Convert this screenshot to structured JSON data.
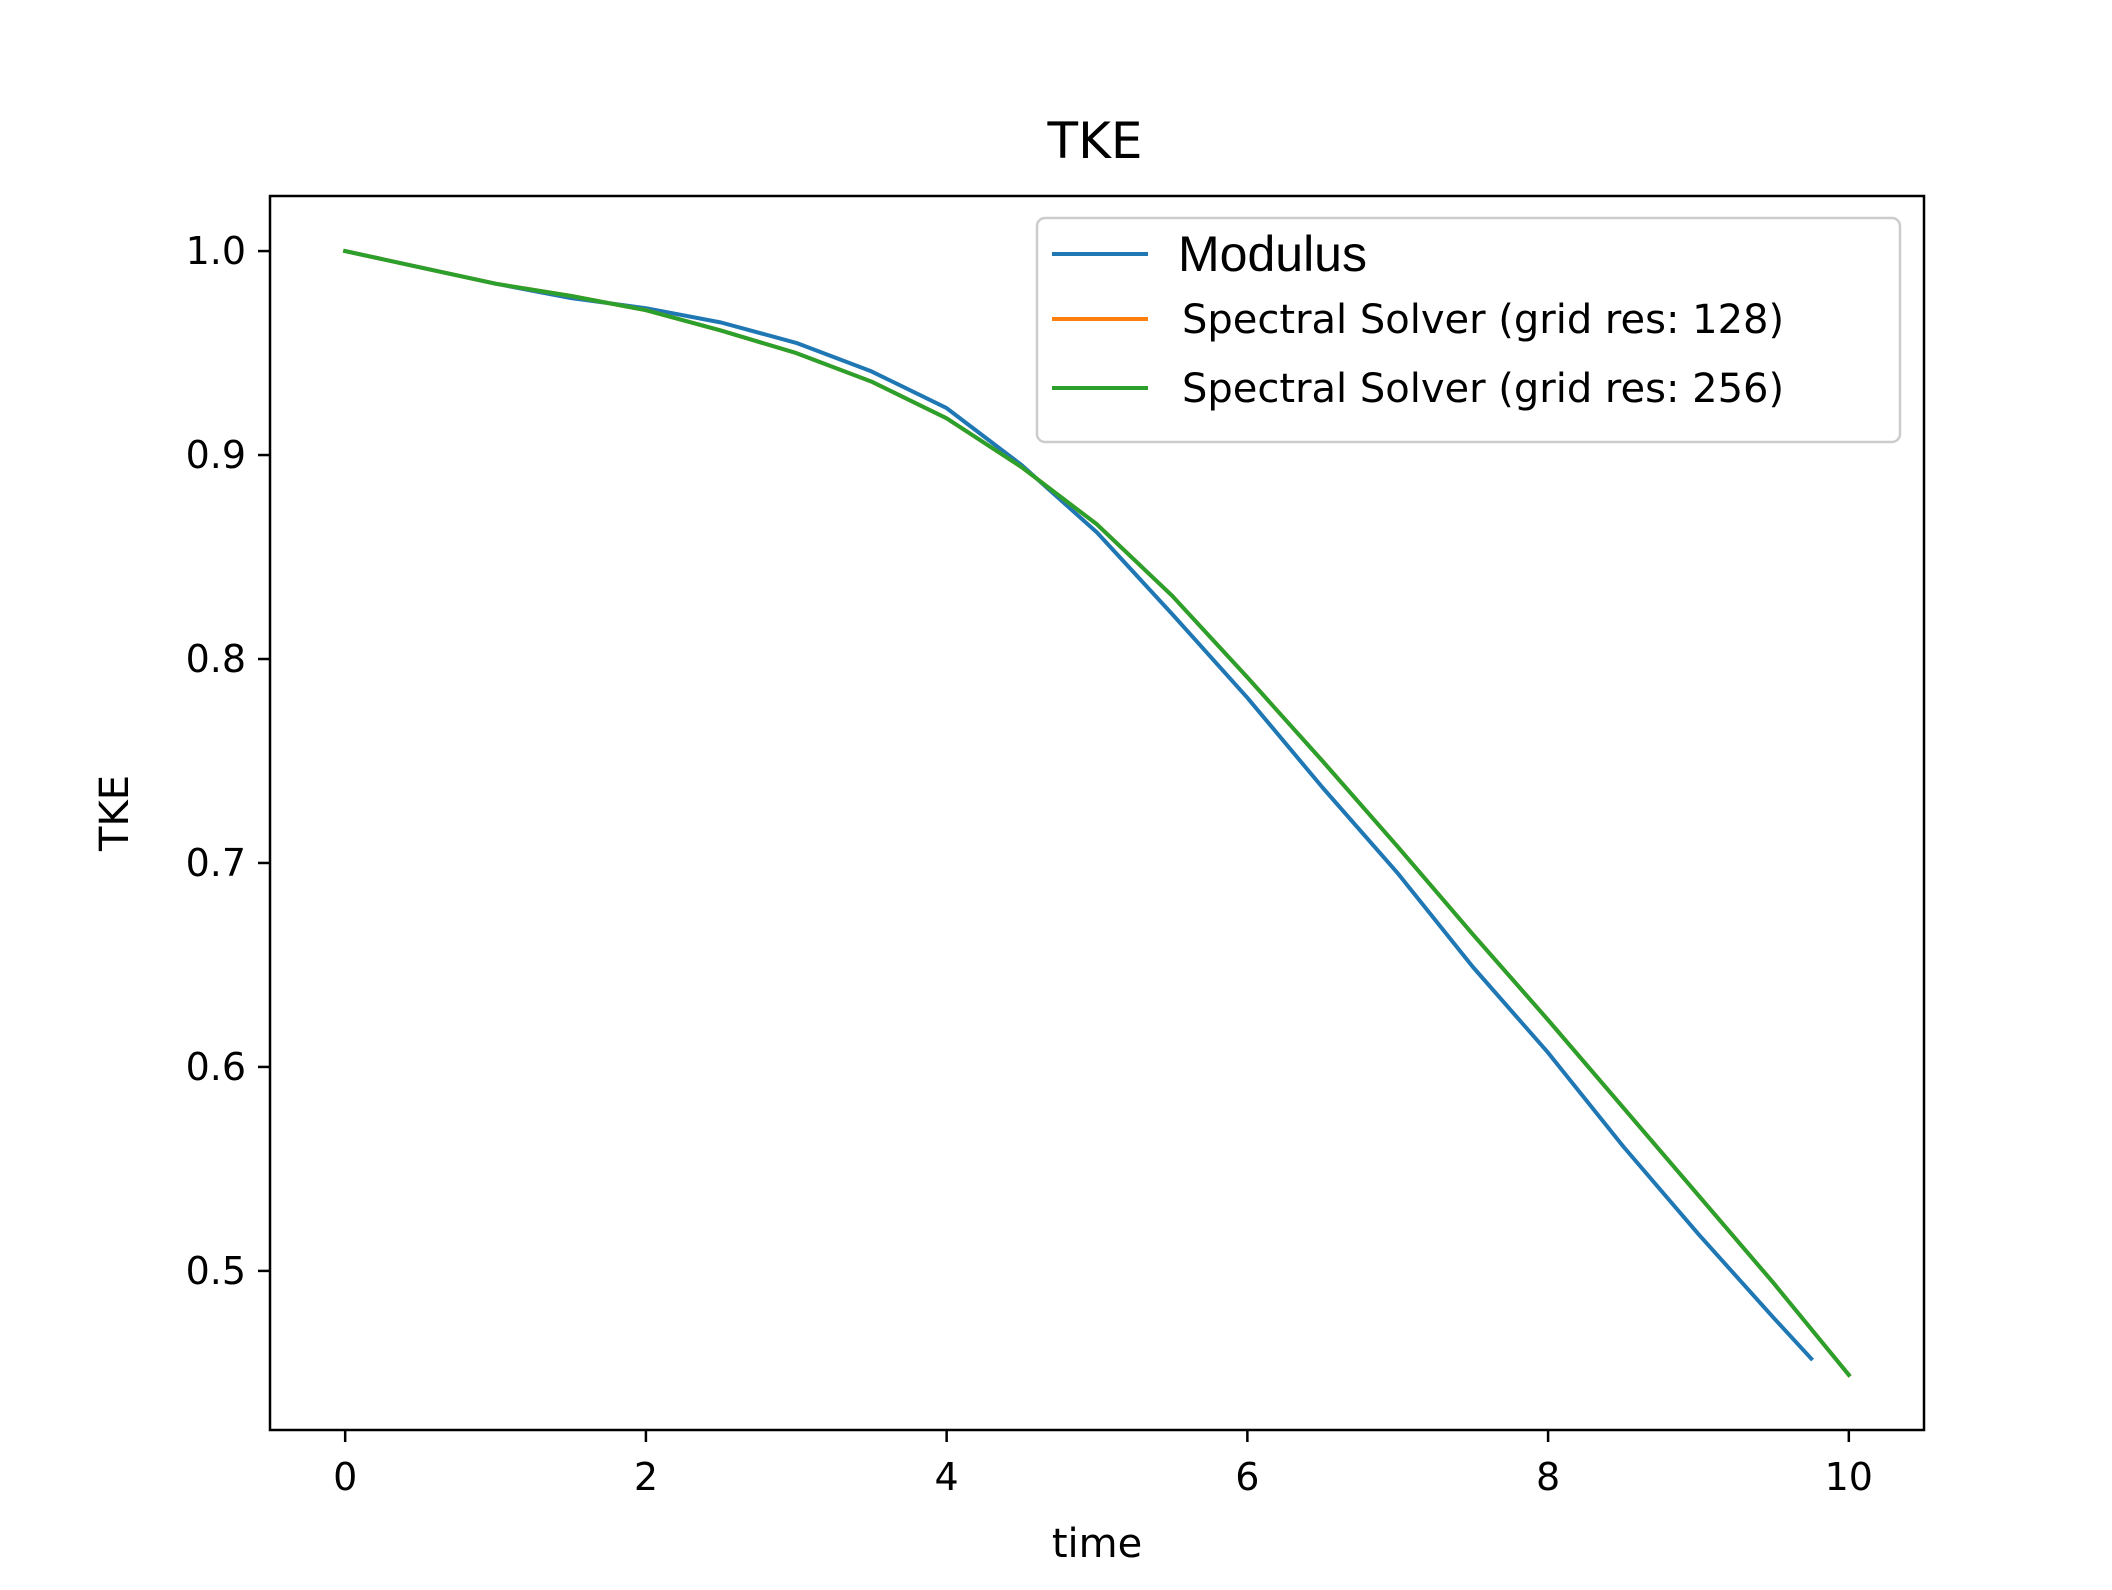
{
  "chart_data": {
    "type": "line",
    "title": "TKE",
    "xlabel": "time",
    "ylabel": "TKE",
    "xlim": [
      -0.5,
      10.5
    ],
    "ylim": [
      0.422,
      1.027
    ],
    "xticks": [
      0,
      2,
      4,
      6,
      8,
      10
    ],
    "xtick_labels": [
      "0",
      "2",
      "4",
      "6",
      "8",
      "10"
    ],
    "yticks": [
      0.5,
      0.6,
      0.7,
      0.8,
      0.9,
      1.0
    ],
    "ytick_labels": [
      "0.5",
      "0.6",
      "0.7",
      "0.8",
      "0.9",
      "1.0"
    ],
    "grid": false,
    "legend_position": "top-right",
    "series": [
      {
        "name": "Modulus",
        "color": "#1f77b4",
        "x": [
          0,
          0.5,
          1,
          1.5,
          2,
          2.5,
          3,
          3.5,
          4,
          4.5,
          5,
          5.5,
          6,
          6.5,
          7,
          7.5,
          8,
          8.5,
          9,
          9.5,
          9.75
        ],
        "y": [
          1.0,
          0.992,
          0.984,
          0.977,
          0.972,
          0.965,
          0.955,
          0.941,
          0.923,
          0.895,
          0.862,
          0.822,
          0.781,
          0.737,
          0.695,
          0.649,
          0.607,
          0.561,
          0.518,
          0.477,
          0.457
        ]
      },
      {
        "name": "Spectral Solver (grid res: 128)",
        "color": "#ff7f0e",
        "x": [
          0,
          0.5,
          1,
          1.5,
          2,
          2.5,
          3,
          3.5,
          4,
          4.5,
          5,
          5.5,
          6,
          6.5,
          7,
          7.5,
          8,
          8.5,
          9,
          9.5,
          10
        ],
        "y": [
          1.0,
          0.992,
          0.984,
          0.978,
          0.971,
          0.961,
          0.95,
          0.936,
          0.918,
          0.894,
          0.866,
          0.831,
          0.791,
          0.75,
          0.708,
          0.665,
          0.623,
          0.58,
          0.537,
          0.494,
          0.449
        ]
      },
      {
        "name": "Spectral Solver (grid res: 256)",
        "color": "#2ca02c",
        "x": [
          0,
          0.5,
          1,
          1.5,
          2,
          2.5,
          3,
          3.5,
          4,
          4.5,
          5,
          5.5,
          6,
          6.5,
          7,
          7.5,
          8,
          8.5,
          9,
          9.5,
          10
        ],
        "y": [
          1.0,
          0.992,
          0.984,
          0.978,
          0.971,
          0.961,
          0.95,
          0.936,
          0.918,
          0.894,
          0.866,
          0.831,
          0.791,
          0.75,
          0.708,
          0.665,
          0.623,
          0.58,
          0.537,
          0.494,
          0.449
        ]
      }
    ]
  }
}
